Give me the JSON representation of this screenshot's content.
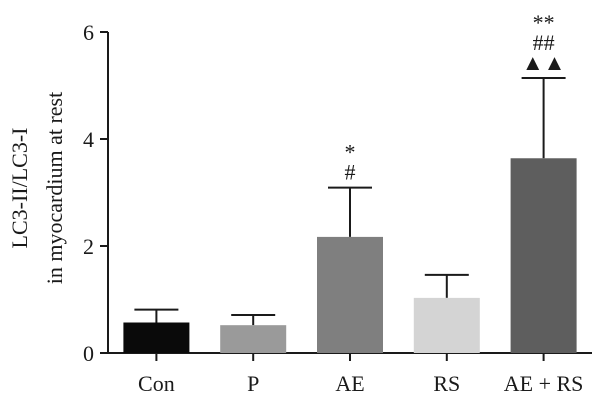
{
  "chart_data": {
    "type": "bar",
    "categories": [
      "Con",
      "P",
      "AE",
      "RS",
      "AE + RS"
    ],
    "values": [
      0.57,
      0.52,
      2.17,
      1.03,
      3.64
    ],
    "errors": [
      0.24,
      0.19,
      0.92,
      0.43,
      1.5
    ],
    "colors": [
      "#0a0a0a",
      "#9a9a9a",
      "#7f7f7f",
      "#d4d4d4",
      "#5e5e5e"
    ],
    "annotations": [
      [],
      [],
      [
        "*",
        "#"
      ],
      [],
      [
        "**",
        "##",
        "▲▲"
      ]
    ],
    "ylabel_line1": "LC3-II/LC3-I",
    "ylabel_line2": "in myocardium at rest",
    "xlabel": "",
    "ylim": [
      0,
      6
    ],
    "yticks": [
      0,
      2,
      4,
      6
    ],
    "grid": false
  }
}
